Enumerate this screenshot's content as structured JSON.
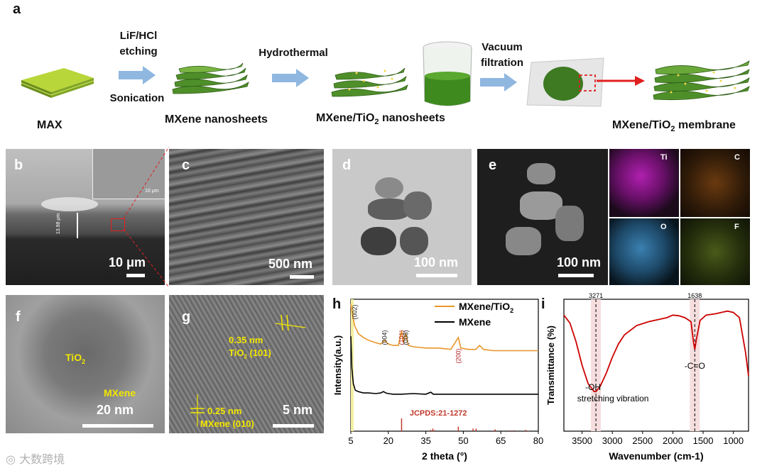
{
  "panel_a": {
    "letter": "a",
    "step1": {
      "label": "MAX"
    },
    "arrow1_top": "LiF/HCl",
    "arrow1_top2": "etching",
    "arrow1_bottom": "Sonication",
    "step2": {
      "label": "MXene nanosheets"
    },
    "arrow2_top": "Hydrothermal",
    "step3": {
      "label_main": "MXene/TiO",
      "label_sub": "2",
      "label_tail": " nanosheets"
    },
    "arrow3_top": "Vacuum",
    "arrow3_top2": "filtration",
    "step4": {
      "label_main": "MXene/TiO",
      "label_sub": "2",
      "label_tail": " membrane"
    }
  },
  "panel_b": {
    "letter": "b",
    "scale": "10 μm",
    "inset_scale": "10 μm",
    "thickness": "13.98 μm"
  },
  "panel_c": {
    "letter": "c",
    "scale": "500 nm"
  },
  "panel_d": {
    "letter": "d",
    "scale": "100 nm"
  },
  "panel_e": {
    "letter": "e",
    "scale": "100 nm",
    "maps": [
      "Ti",
      "C",
      "O",
      "F"
    ]
  },
  "panel_f": {
    "letter": "f",
    "scale": "20 nm",
    "tio2": "TiO",
    "tio2_sub": "2",
    "mxene": "MXene"
  },
  "panel_g": {
    "letter": "g",
    "scale": "5 nm",
    "d1": "0.35 nm",
    "d1_label": "TiO",
    "d1_sub": "2",
    "d1_plane": " (101)",
    "d2": "0.25 nm",
    "d2_label": "MXene  (010)"
  },
  "chart_data": [
    {
      "panel": "h",
      "type": "line",
      "xlabel": "2 theta (°)",
      "ylabel": "Intensity(a.u.)",
      "xlim": [
        5,
        80
      ],
      "xticks": [
        "5",
        "20",
        "35",
        "50",
        "65",
        "80"
      ],
      "legend": [
        "MXene/TiO2",
        "MXene"
      ],
      "legend_placement": "top-right",
      "series": [
        {
          "name": "MXene/TiO2",
          "color": "#e8962a",
          "x": [
            5,
            5.5,
            6.5,
            8,
            10,
            12,
            15,
            17,
            18.5,
            20,
            22,
            24,
            25.3,
            26,
            27,
            28,
            30,
            35,
            40,
            45,
            48,
            49,
            52,
            55,
            56.5,
            58,
            62,
            65,
            70,
            75,
            80
          ],
          "y": [
            0.96,
            0.9,
            0.8,
            0.74,
            0.71,
            0.69,
            0.67,
            0.66,
            0.69,
            0.66,
            0.65,
            0.65,
            0.76,
            0.67,
            0.74,
            0.65,
            0.64,
            0.63,
            0.63,
            0.62,
            0.71,
            0.63,
            0.62,
            0.62,
            0.65,
            0.62,
            0.61,
            0.61,
            0.61,
            0.61,
            0.61
          ]
        },
        {
          "name": "MXene",
          "color": "#000000",
          "x": [
            5,
            5.4,
            6,
            6.8,
            8,
            10,
            12,
            15,
            17,
            18,
            19,
            20,
            22,
            25,
            30,
            35,
            37,
            38,
            40,
            45,
            50,
            55,
            60,
            65,
            70,
            75,
            80
          ],
          "y": [
            0.72,
            0.48,
            0.36,
            0.31,
            0.3,
            0.29,
            0.29,
            0.285,
            0.29,
            0.3,
            0.29,
            0.285,
            0.28,
            0.28,
            0.285,
            0.28,
            0.295,
            0.28,
            0.28,
            0.28,
            0.28,
            0.28,
            0.28,
            0.28,
            0.28,
            0.28,
            0.28
          ]
        }
      ],
      "peak_labels": [
        {
          "text": "(002)",
          "x": 6.5,
          "color": "#222"
        },
        {
          "text": "(004)",
          "x": 18.5,
          "color": "#222"
        },
        {
          "text": "(101)",
          "x": 25.3,
          "color": "#b22222"
        },
        {
          "text": "(008)",
          "x": 27,
          "color": "#222"
        },
        {
          "text": "(200)",
          "x": 48,
          "color": "#b22222"
        }
      ],
      "reference": {
        "label": "JCPDS:21-1272",
        "color": "#c0392b",
        "x": [
          25.3,
          36.9,
          37.8,
          38.6,
          48.0,
          53.9,
          55.1,
          62.1,
          62.7,
          68.8,
          70.3,
          75.0,
          75.1,
          76.0
        ],
        "h": [
          1.0,
          0.1,
          0.2,
          0.08,
          0.35,
          0.2,
          0.2,
          0.05,
          0.14,
          0.06,
          0.07,
          0.1,
          0.04,
          0.03
        ]
      }
    },
    {
      "panel": "i",
      "type": "line",
      "xlabel": "Wavenumber (cm-1)",
      "ylabel": "Transmittance (%)",
      "xlim": [
        3800,
        750
      ],
      "xticks": [
        "3500",
        "3000",
        "2500",
        "2000",
        "1500",
        "1000"
      ],
      "annotations": [
        "3271",
        "1638",
        "-OH",
        "stretching vibration",
        "-C=O"
      ],
      "series": [
        {
          "name": "",
          "color": "#cc0000",
          "x": [
            3800,
            3700,
            3600,
            3500,
            3400,
            3300,
            3271,
            3200,
            3100,
            3000,
            2900,
            2800,
            2600,
            2400,
            2200,
            2100,
            2000,
            1900,
            1800,
            1700,
            1660,
            1638,
            1610,
            1550,
            1450,
            1300,
            1200,
            1100,
            1000,
            900,
            800,
            750
          ],
          "y": [
            0.88,
            0.82,
            0.68,
            0.5,
            0.36,
            0.3,
            0.3,
            0.34,
            0.44,
            0.56,
            0.66,
            0.73,
            0.8,
            0.83,
            0.85,
            0.86,
            0.88,
            0.875,
            0.86,
            0.83,
            0.68,
            0.62,
            0.7,
            0.84,
            0.88,
            0.89,
            0.9,
            0.91,
            0.9,
            0.86,
            0.6,
            0.42
          ]
        }
      ],
      "markers": [
        3271,
        1638
      ]
    }
  ],
  "watermark": "大数跨境"
}
